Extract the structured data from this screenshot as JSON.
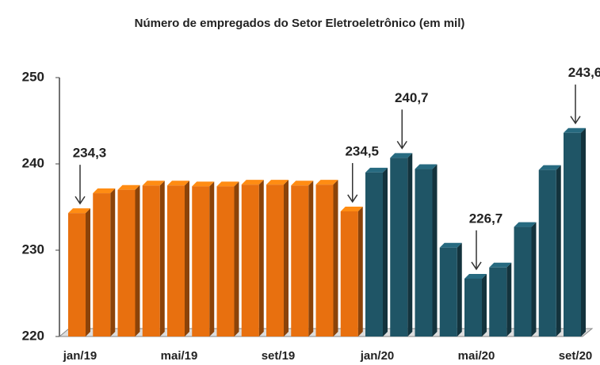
{
  "chart_data": {
    "type": "bar",
    "title": "Número de empregados do Setor Eletroeletrônico (em mil)",
    "categories": [
      "jan/19",
      null,
      null,
      null,
      "mai/19",
      null,
      null,
      null,
      "set/19",
      null,
      null,
      null,
      "jan/20",
      null,
      null,
      null,
      "mai/20",
      null,
      null,
      null,
      "set/20"
    ],
    "values": [
      234.3,
      236.6,
      237.0,
      237.5,
      237.5,
      237.4,
      237.4,
      237.6,
      237.6,
      237.5,
      237.6,
      234.5,
      239.0,
      240.7,
      239.4,
      230.3,
      226.7,
      228.0,
      232.7,
      239.3,
      243.6
    ],
    "value_labels": [
      "234,3",
      null,
      null,
      null,
      null,
      null,
      null,
      null,
      null,
      null,
      null,
      "234,5",
      null,
      "240,7",
      null,
      null,
      "226,7",
      null,
      null,
      null,
      "243,6"
    ],
    "colors": [
      "#e8700f",
      "#e8700f",
      "#e8700f",
      "#e8700f",
      "#e8700f",
      "#e8700f",
      "#e8700f",
      "#e8700f",
      "#e8700f",
      "#e8700f",
      "#e8700f",
      "#e8700f",
      "#1f5566",
      "#1f5566",
      "#1f5566",
      "#1f5566",
      "#1f5566",
      "#1f5566",
      "#1f5566",
      "#1f5566",
      "#1f5566"
    ],
    "ylim": [
      220,
      250
    ],
    "yticks": [
      220,
      230,
      240,
      250
    ],
    "grid": false
  }
}
